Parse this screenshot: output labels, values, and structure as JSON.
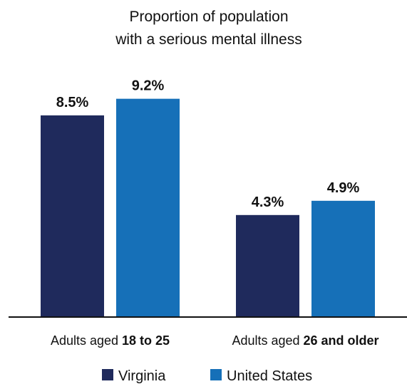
{
  "chart_data": {
    "type": "bar",
    "title_lines": [
      "Proportion of population",
      "with a serious mental illness"
    ],
    "categories": [
      {
        "prefix": "Adults aged ",
        "bold": "18 to 25"
      },
      {
        "prefix": "Adults aged ",
        "bold": "26 and older"
      }
    ],
    "series": [
      {
        "name": "Virginia",
        "color": "#1f2a5c",
        "values": [
          8.5,
          4.3
        ],
        "labels": [
          "8.5%",
          "4.3%"
        ]
      },
      {
        "name": "United States",
        "color": "#1670b8",
        "values": [
          9.2,
          4.9
        ],
        "labels": [
          "9.2%",
          "4.9%"
        ]
      }
    ],
    "ylim": [
      0,
      10
    ],
    "grid": false,
    "legend_position": "bottom",
    "axis_color": "#111111"
  }
}
